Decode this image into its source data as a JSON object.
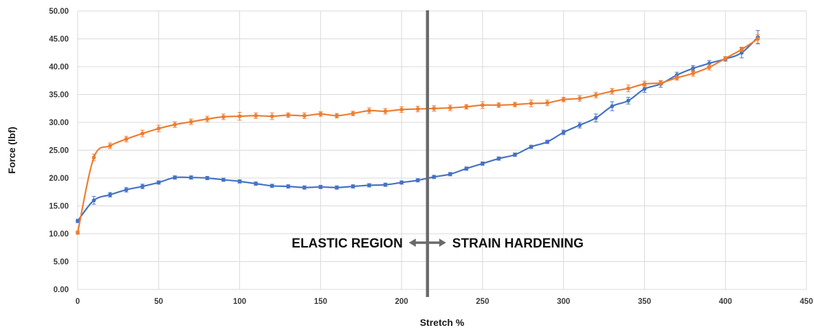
{
  "chart_data": {
    "type": "line",
    "xlabel": "Stretch %",
    "ylabel": "Force (lbf)",
    "xlim": [
      0,
      450
    ],
    "ylim": [
      0,
      50
    ],
    "x_ticks": [
      "0",
      "50",
      "100",
      "150",
      "200",
      "250",
      "300",
      "350",
      "400",
      "450"
    ],
    "y_ticks": [
      "0.00",
      "5.00",
      "10.00",
      "15.00",
      "20.00",
      "25.00",
      "30.00",
      "35.00",
      "40.00",
      "45.00",
      "50.00"
    ],
    "grid": true,
    "divider_x": 216,
    "annotations": {
      "left": "ELASTIC REGION",
      "right": "STRAIN HARDENING"
    },
    "colors": {
      "series_blue": "#4472c4",
      "series_orange": "#ed7d31",
      "divider": "#6a6a6a",
      "grid": "#d9d9d9"
    },
    "series": [
      {
        "color": "#4472c4",
        "x": [
          0,
          10,
          20,
          30,
          40,
          50,
          60,
          70,
          80,
          90,
          100,
          110,
          120,
          130,
          140,
          150,
          160,
          170,
          180,
          190,
          200,
          210,
          220,
          230,
          240,
          250,
          260,
          270,
          280,
          290,
          300,
          310,
          320,
          330,
          340,
          350,
          360,
          370,
          380,
          390,
          400,
          410,
          420
        ],
        "y": [
          12.3,
          16.0,
          17.0,
          17.9,
          18.5,
          19.2,
          20.1,
          20.1,
          20.0,
          19.7,
          19.4,
          19.0,
          18.6,
          18.5,
          18.3,
          18.4,
          18.3,
          18.5,
          18.7,
          18.8,
          19.2,
          19.6,
          20.2,
          20.7,
          21.7,
          22.6,
          23.5,
          24.2,
          25.6,
          26.5,
          28.2,
          29.5,
          30.8,
          32.9,
          33.9,
          36.0,
          36.9,
          38.5,
          39.7,
          40.6,
          41.4,
          42.5,
          45.3
        ],
        "err": [
          0.3,
          0.7,
          0.4,
          0.4,
          0.4,
          0.3,
          0.3,
          0.3,
          0.3,
          0.3,
          0.3,
          0.3,
          0.3,
          0.3,
          0.3,
          0.3,
          0.3,
          0.3,
          0.3,
          0.3,
          0.3,
          0.3,
          0.3,
          0.3,
          0.3,
          0.3,
          0.3,
          0.3,
          0.3,
          0.3,
          0.4,
          0.5,
          0.7,
          0.8,
          0.6,
          0.6,
          0.6,
          0.5,
          0.5,
          0.5,
          0.4,
          0.9,
          1.2
        ]
      },
      {
        "color": "#ed7d31",
        "x": [
          0,
          10,
          20,
          30,
          40,
          50,
          60,
          70,
          80,
          90,
          100,
          110,
          120,
          130,
          140,
          150,
          160,
          170,
          180,
          190,
          200,
          210,
          220,
          230,
          240,
          250,
          260,
          270,
          280,
          290,
          300,
          310,
          320,
          330,
          340,
          350,
          360,
          370,
          380,
          390,
          400,
          410,
          420
        ],
        "y": [
          10.2,
          23.7,
          25.8,
          27.0,
          28.0,
          28.9,
          29.6,
          30.1,
          30.6,
          31.0,
          31.1,
          31.2,
          31.1,
          31.3,
          31.2,
          31.5,
          31.2,
          31.6,
          32.1,
          32.0,
          32.3,
          32.4,
          32.5,
          32.6,
          32.8,
          33.1,
          33.1,
          33.2,
          33.4,
          33.5,
          34.1,
          34.3,
          34.9,
          35.6,
          36.1,
          36.9,
          37.1,
          38.0,
          38.8,
          39.9,
          41.5,
          43.1,
          45.0
        ],
        "err": [
          0.3,
          0.6,
          0.5,
          0.5,
          0.6,
          0.6,
          0.5,
          0.5,
          0.5,
          0.5,
          0.7,
          0.5,
          0.6,
          0.4,
          0.5,
          0.4,
          0.4,
          0.4,
          0.5,
          0.5,
          0.5,
          0.5,
          0.5,
          0.5,
          0.4,
          0.6,
          0.4,
          0.4,
          0.6,
          0.5,
          0.4,
          0.5,
          0.5,
          0.5,
          0.6,
          0.5,
          0.4,
          0.4,
          0.5,
          0.5,
          0.3,
          0.4,
          0.8
        ]
      }
    ]
  }
}
